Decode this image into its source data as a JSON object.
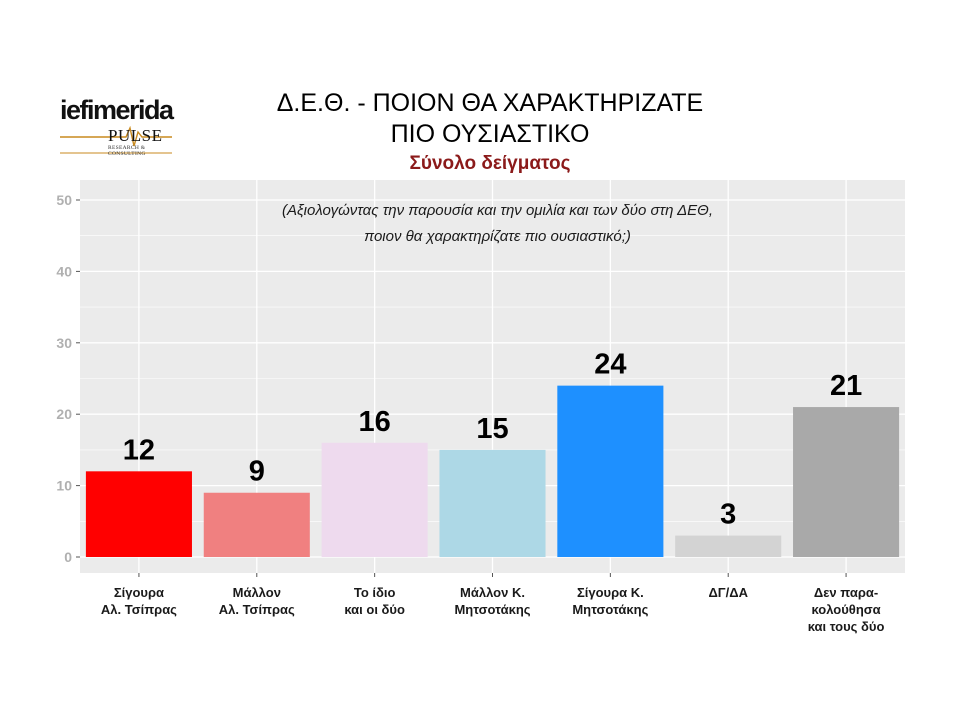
{
  "header": {
    "logo_main": "iefimerida",
    "logo_sub": "PULSE",
    "logo_tagline": "RESEARCH & CONSULTING",
    "title_line1": "Δ.Ε.Θ. - ΠΟΙΟΝ ΘΑ ΧΑΡΑΚΤΗΡΙΖΑΤΕ",
    "title_line2": "ΠΙΟ ΟΥΣΙΑΣΤΙΚΟ",
    "subtitle": "Σύνολο δείγματος"
  },
  "chart_data": {
    "type": "bar",
    "title": "Δ.Ε.Θ. - ΠΟΙΟΝ ΘΑ ΧΑΡΑΚΤΗΡΙΖΑΤΕ ΠΙΟ ΟΥΣΙΑΣΤΙΚΟ",
    "subtitle": "Σύνολο δείγματος",
    "annotation": [
      "(Αξιολογώντας την παρουσία και την ομιλία και των δύο στη ΔΕΘ,",
      "ποιον θα χαρακτηρίζατε πιο ουσιαστικό;)"
    ],
    "categories": [
      [
        "Σίγουρα",
        "Αλ. Τσίπρας"
      ],
      [
        "Μάλλον",
        "Αλ. Τσίπρας"
      ],
      [
        "Το ίδιο",
        "και οι δύο"
      ],
      [
        "Μάλλον Κ.",
        "Μητσοτάκης"
      ],
      [
        "Σίγουρα Κ.",
        "Μητσοτάκης"
      ],
      [
        "ΔΓ/ΔΑ"
      ],
      [
        "Δεν παρα-",
        "κολούθησα",
        "και τους δύο"
      ]
    ],
    "values": [
      12,
      9,
      16,
      15,
      24,
      3,
      21
    ],
    "colors": [
      "#ff0000",
      "#f08080",
      "#eedaee",
      "#add8e6",
      "#1e90ff",
      "#d3d3d3",
      "#a9a9a9"
    ],
    "ylim": [
      0,
      50
    ],
    "yticks": [
      0,
      10,
      20,
      30,
      40,
      50
    ],
    "grid": true,
    "panel_background": "#ebebeb",
    "xlabel": "",
    "ylabel": ""
  }
}
